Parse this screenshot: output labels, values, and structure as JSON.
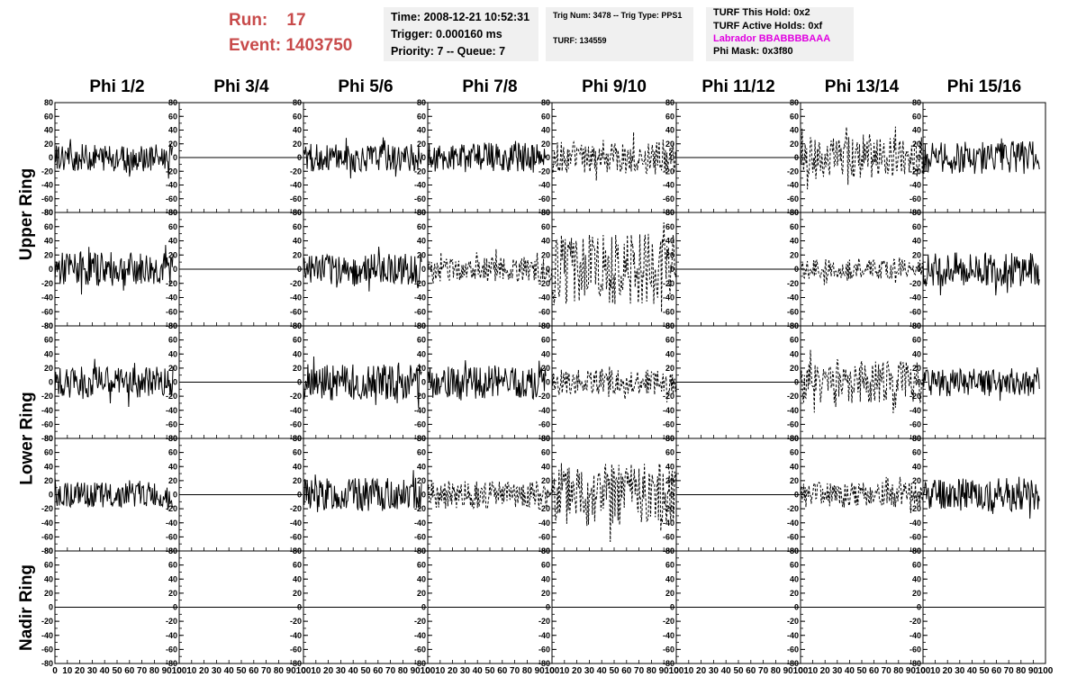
{
  "header": {
    "run_label": "Run:",
    "run_value": "17",
    "event_label": "Event:",
    "event_value": "1403750",
    "time": "Time: 2008-12-21 10:52:31",
    "trigger": "Trigger: 0.000160 ms",
    "priority": "Priority: 7 -- Queue: 7",
    "trig_num": "Trig Num: 3478 -- Trig Type: PPS1",
    "turf": "TURF: 134559",
    "turf_hold": "TURF This Hold: 0x2",
    "turf_active": "TURF Active Holds: 0xf",
    "labrador": "Labrador BBABBBBAAA",
    "phi_mask": "Phi Mask: 0x3f80",
    "labrador_color": "#e000e0",
    "run_color": "#c84b4b"
  },
  "chart_data": {
    "type": "line",
    "columns": [
      "Phi 1/2",
      "Phi 3/4",
      "Phi 5/6",
      "Phi 7/8",
      "Phi 9/10",
      "Phi 11/12",
      "Phi 13/14",
      "Phi 15/16"
    ],
    "rows": [
      "Upper Ring",
      "Upper Ring",
      "Lower Ring",
      "Lower Ring",
      "Nadir Ring"
    ],
    "row_labels": [
      "Upper Ring",
      "Lower Ring",
      "Nadir Ring"
    ],
    "xlim": [
      0,
      100
    ],
    "ylim": [
      -80,
      80
    ],
    "yticks": [
      "-80",
      "-60",
      "-40",
      "-20",
      "0",
      "20",
      "40",
      "60",
      "80"
    ],
    "xticks": [
      "0",
      "10",
      "20",
      "30",
      "40",
      "50",
      "60",
      "70",
      "80",
      "90",
      "100"
    ],
    "grid": false,
    "styles": {
      "f": "flat",
      "s": "solid waveform",
      "d": "dashed waveform"
    },
    "panels": [
      [
        "s",
        "f",
        "s",
        "s",
        "d",
        "f",
        "d",
        "s"
      ],
      [
        "s",
        "f",
        "s",
        "d",
        "d",
        "f",
        "d",
        "s"
      ],
      [
        "s",
        "f",
        "s",
        "s",
        "d",
        "f",
        "d",
        "s"
      ],
      [
        "s",
        "f",
        "s",
        "d",
        "d",
        "f",
        "d",
        "s"
      ],
      [
        "f",
        "f",
        "f",
        "f",
        "f",
        "f",
        "f",
        "f"
      ]
    ],
    "amplitude": [
      [
        20,
        0,
        20,
        22,
        24,
        0,
        30,
        24
      ],
      [
        24,
        0,
        22,
        18,
        50,
        0,
        14,
        24
      ],
      [
        22,
        0,
        26,
        24,
        18,
        0,
        30,
        20
      ],
      [
        18,
        0,
        24,
        20,
        45,
        0,
        18,
        24
      ],
      [
        0,
        0,
        0,
        0,
        0,
        0,
        0,
        0
      ]
    ]
  }
}
